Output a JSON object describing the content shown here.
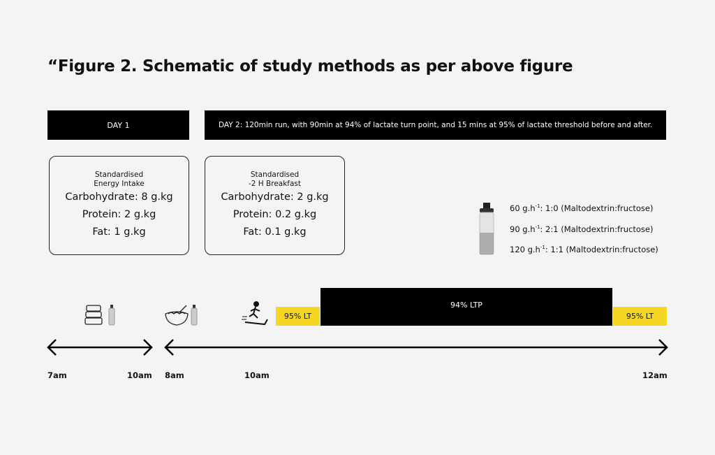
{
  "title": "“Figure 2. Schematic of study methods as per above figure",
  "day1": {
    "label": "DAY 1",
    "box": {
      "subtitle1": "Standardised",
      "subtitle2": "Energy Intake",
      "carb": "Carbohydrate: 8 g.kg",
      "protein": "Protein: 2 g.kg",
      "fat": "Fat: 1 g.kg"
    }
  },
  "day2": {
    "label": "DAY 2: 120min run, with 90min at 94% of lactate turn point, and 15 mins at 95% of lactate threshold before and after.",
    "box": {
      "subtitle1": "Standardised",
      "subtitle2": "-2 H Breakfast",
      "carb": "Carbohydrate: 2 g.kg",
      "protein": "Protein: 0.2 g.kg",
      "fat": "Fat: 0.1 g.kg"
    }
  },
  "drinks": [
    {
      "dose": "60 g.h",
      "sup": "-1",
      "ratio": ": 1:0 (Maltodextrin:fructose)"
    },
    {
      "dose": "90 g.h",
      "sup": "-1",
      "ratio": ": 2:1 (Maltodextrin:fructose)"
    },
    {
      "dose": "120 g.h",
      "sup": "-1",
      "ratio": ": 1:1 (Maltodextrin:fructose)"
    }
  ],
  "timeline": {
    "seg1": "95% LT",
    "seg2": "94% LTP",
    "seg3": "95% LT",
    "times": [
      "7am",
      "10am",
      "8am",
      "10am",
      "12am"
    ]
  },
  "colors": {
    "yellow": "#f5d623",
    "black": "#000000",
    "background": "#f4f4f4"
  },
  "icons": [
    "food-containers-icon",
    "bottle-icon",
    "cereal-bowl-icon",
    "bottle-icon",
    "treadmill-runner-icon",
    "large-bottle-icon"
  ]
}
